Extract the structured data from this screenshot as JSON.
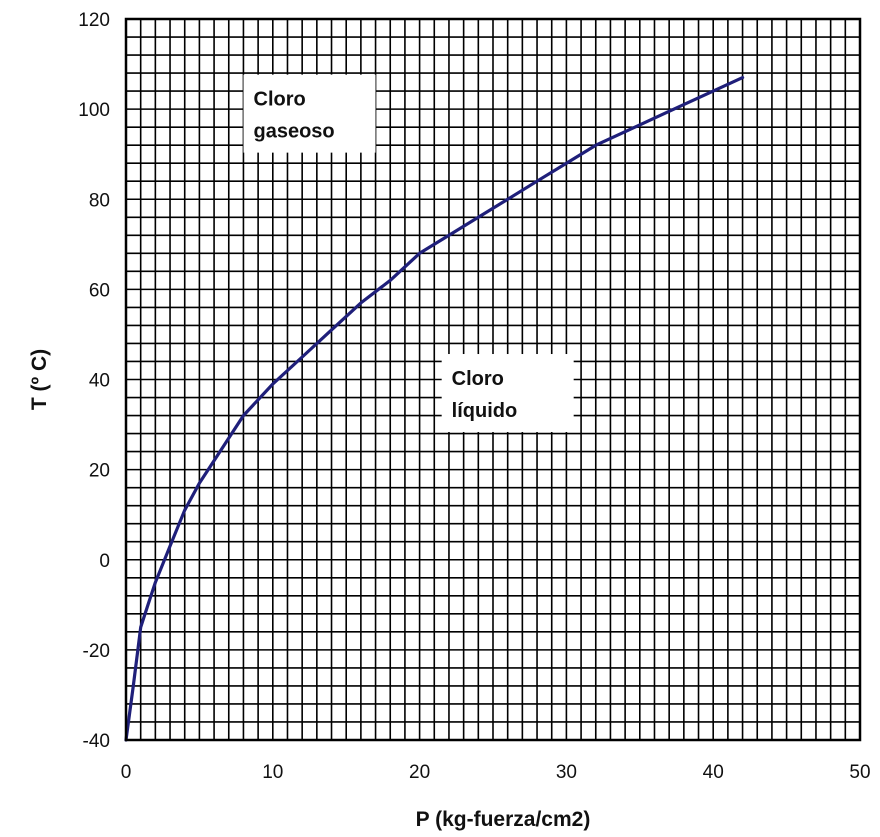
{
  "chart_data": {
    "type": "line",
    "xlabel": "P (kg-fuerza/cm2)",
    "ylabel": "T (º C)",
    "xlim": [
      0,
      50
    ],
    "ylim": [
      -40,
      120
    ],
    "xticks": [
      0,
      10,
      20,
      30,
      40,
      50
    ],
    "yticks": [
      -40,
      -20,
      0,
      20,
      40,
      60,
      80,
      100,
      120
    ],
    "grid": true,
    "line_color": "#1f1f7a",
    "series": [
      {
        "x": [
          0,
          0.5,
          1,
          1.5,
          2,
          3,
          4,
          5,
          6,
          8,
          10,
          12,
          14,
          16,
          18,
          20,
          22,
          24,
          26,
          28,
          30,
          32,
          34,
          36,
          38,
          40,
          42
        ],
        "y": [
          -40,
          -28,
          -15,
          -10,
          -5,
          3,
          11,
          17,
          22,
          32,
          39,
          45,
          51,
          57,
          62,
          68,
          72,
          76,
          80,
          84,
          88,
          92,
          95,
          98,
          101,
          104,
          107
        ]
      }
    ],
    "annotations": [
      {
        "lines": [
          "Cloro",
          "gaseoso"
        ],
        "x": 12.5,
        "y": 99
      },
      {
        "lines": [
          "Cloro",
          "líquido"
        ],
        "x": 26,
        "y": 37
      }
    ]
  }
}
